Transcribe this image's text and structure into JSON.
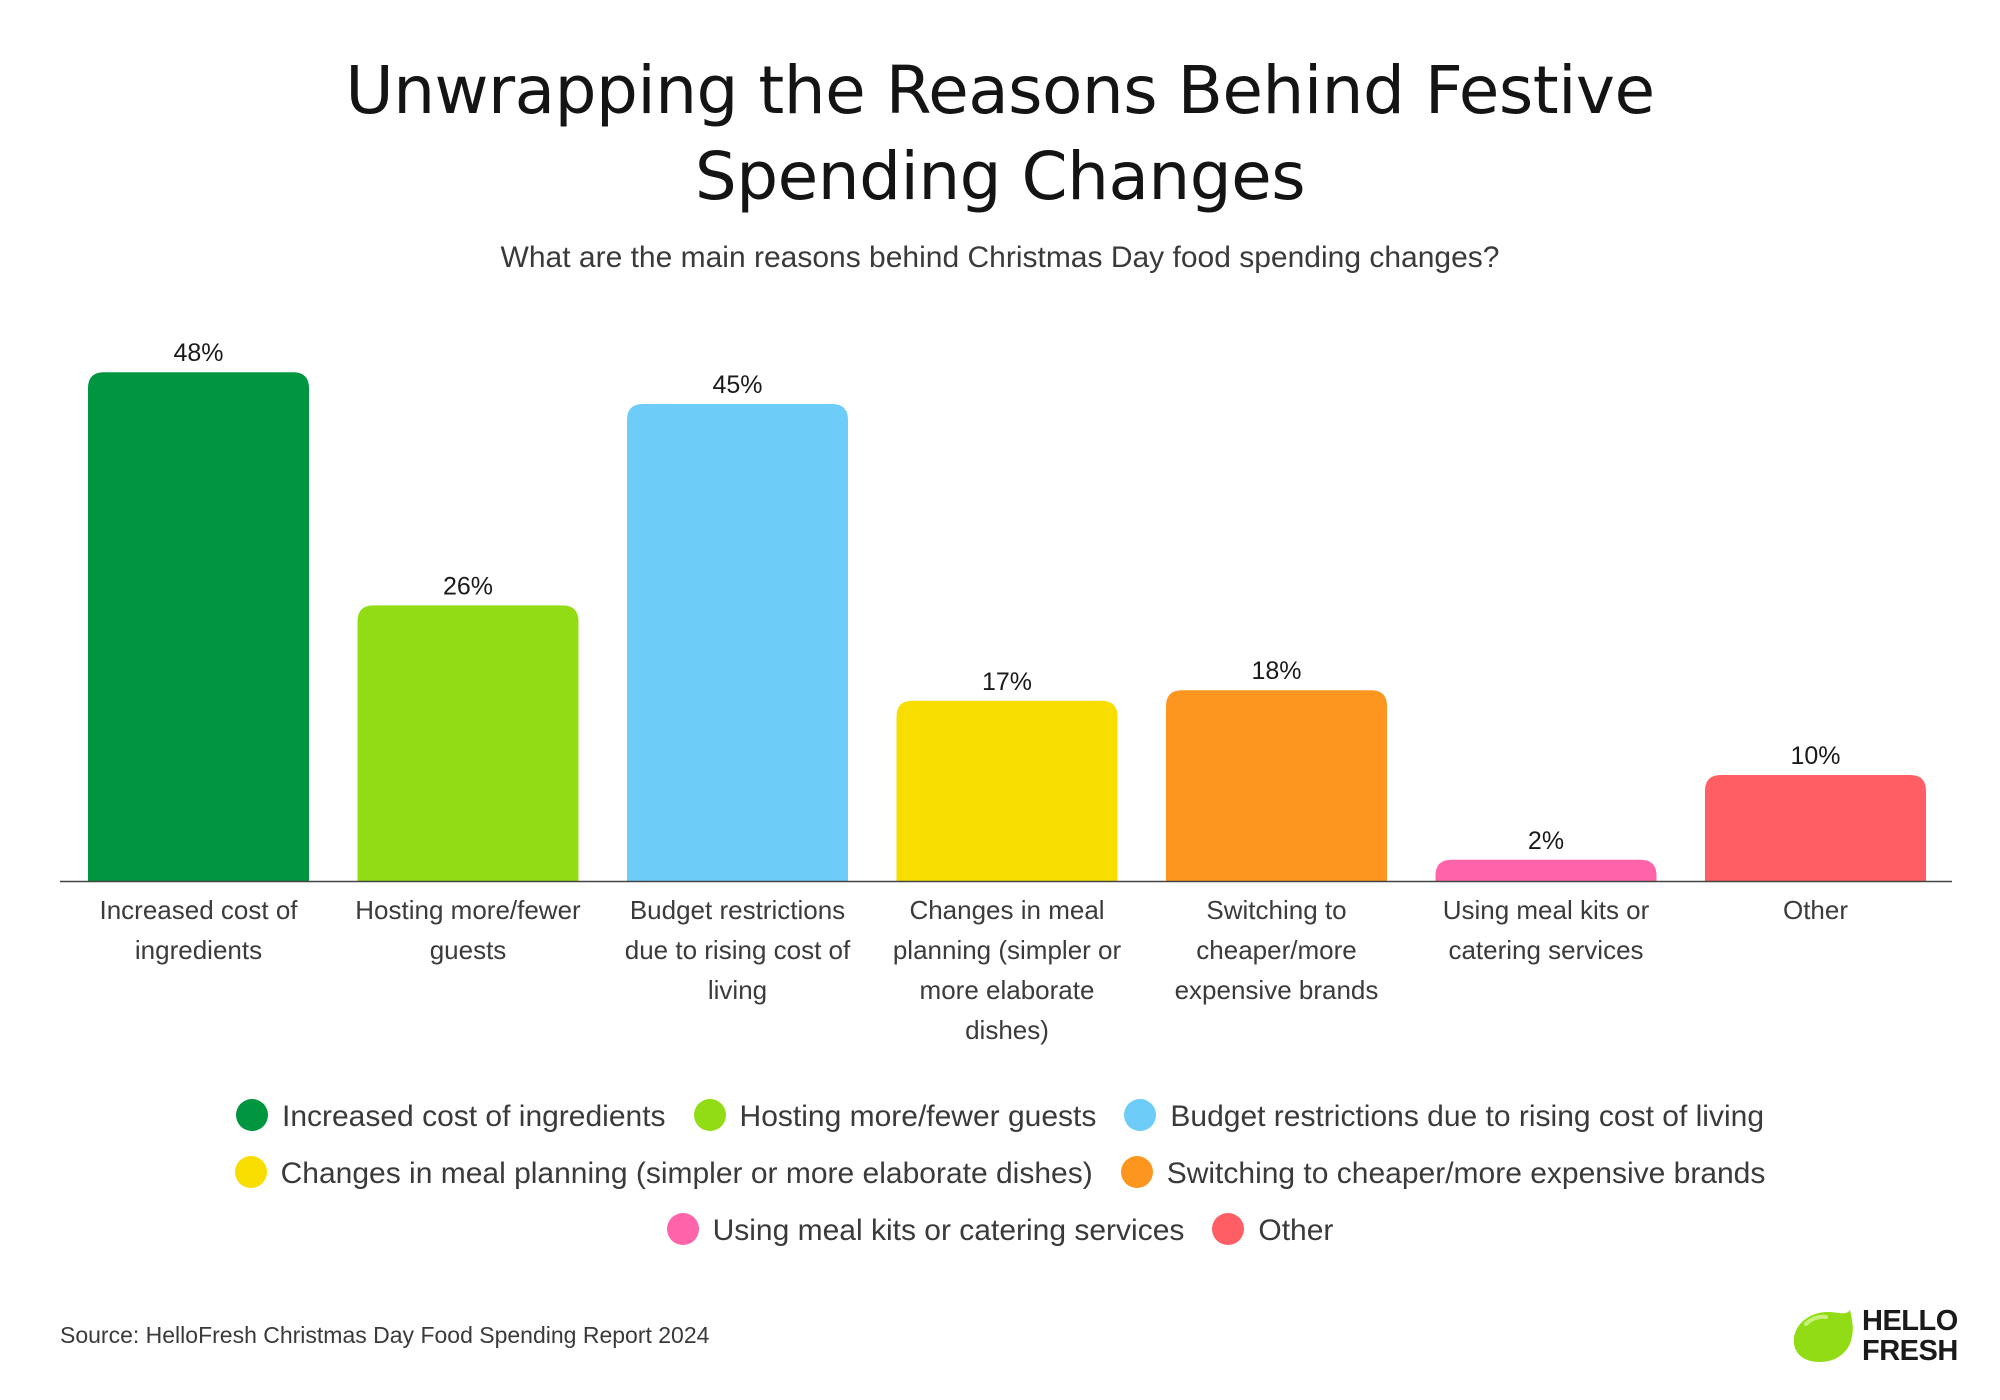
{
  "header": {
    "title_line1": "Unwrapping the Reasons Behind Festive",
    "title_line2": "Spending Changes",
    "subtitle": "What are the main reasons behind Christmas Day food spending changes?"
  },
  "chart_data": {
    "type": "bar",
    "title": "Unwrapping the Reasons Behind Festive Spending Changes",
    "subtitle": "What are the main reasons behind Christmas Day food spending changes?",
    "categories": [
      "Increased cost of ingredients",
      "Hosting more/fewer guests",
      "Budget restrictions due to rising cost of living",
      "Changes in meal planning (simpler or more elaborate dishes)",
      "Switching to cheaper/more expensive brands",
      "Using meal kits or catering services",
      "Other"
    ],
    "axis_labels": [
      [
        "Increased cost of",
        "ingredients"
      ],
      [
        "Hosting more/fewer",
        "guests"
      ],
      [
        "Budget restrictions",
        "due to rising cost of",
        "living"
      ],
      [
        "Changes in meal",
        "planning (simpler or",
        "more elaborate",
        "dishes)"
      ],
      [
        "Switching to",
        "cheaper/more",
        "expensive brands"
      ],
      [
        "Using meal kits or",
        "catering services"
      ],
      [
        "Other"
      ]
    ],
    "values": [
      48,
      26,
      45,
      17,
      18,
      2,
      10
    ],
    "value_labels": [
      "48%",
      "26%",
      "45%",
      "17%",
      "18%",
      "2%",
      "10%"
    ],
    "colors": [
      "#009640",
      "#91DC14",
      "#6DCDF8",
      "#F8DE00",
      "#FC961E",
      "#FF64AA",
      "#FF5F64"
    ],
    "ylim": [
      0,
      50
    ],
    "grid": false,
    "legend_position": "bottom",
    "legend": [
      "Increased cost of ingredients",
      "Hosting more/fewer guests",
      "Budget restrictions due to rising cost of living",
      "Changes in meal planning (simpler or more elaborate dishes)",
      "Switching to cheaper/more expensive brands",
      "Using meal kits or catering services",
      "Other"
    ]
  },
  "footer": {
    "source": "Source: HelloFresh Christmas Day Food Spending Report 2024",
    "logo_line1": "HELLO",
    "logo_line2": "FRESH",
    "logo_color": "#91DC14"
  }
}
